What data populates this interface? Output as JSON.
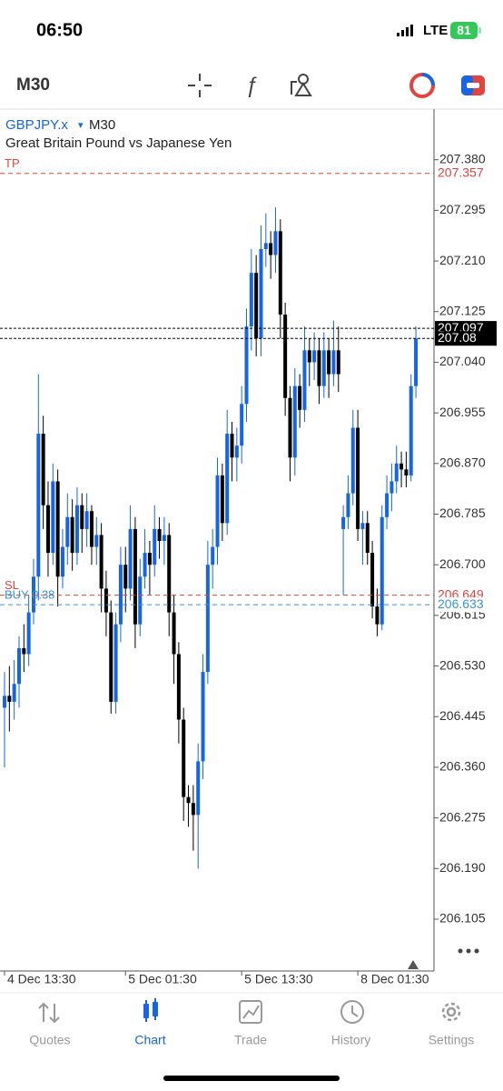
{
  "status_bar": {
    "time": "06:50",
    "network": "LTE",
    "battery": "81"
  },
  "toolbar": {
    "timeframe": "M30"
  },
  "chart_data": {
    "type": "candlestick",
    "symbol": "GBPJPY.x",
    "symbol_arrow": "▾",
    "timeframe": "M30",
    "subtitle": "Great Britain Pound vs Japanese Yen",
    "up_color": "#1565e6",
    "down_color": "#000000",
    "ylim": [
      206.018,
      207.465
    ],
    "yticks": [
      {
        "value": 207.38,
        "label": "207.380"
      },
      207.295,
      {
        "value": 207.21,
        "label": "207.210"
      },
      207.125,
      {
        "value": 207.04,
        "label": "207.040"
      },
      206.955,
      {
        "value": 206.87,
        "label": "206.870"
      },
      206.785,
      {
        "value": 206.7,
        "label": "206.700"
      },
      206.615,
      {
        "value": 206.53,
        "label": "206.530"
      },
      206.445,
      {
        "value": 206.36,
        "label": "206.360"
      },
      206.275,
      {
        "value": 206.19,
        "label": "206.190"
      },
      206.105
    ],
    "levels": [
      {
        "name": "TP",
        "value": 207.357,
        "color": "#e0443e"
      },
      {
        "name": "SL",
        "value": 206.649,
        "color": "#e0443e"
      },
      {
        "name": "BUY 0.38",
        "value": 206.633,
        "color": "#3b8fe0"
      },
      {
        "value": 207.097,
        "color": "#000000",
        "boxed": true
      },
      {
        "value": 207.08,
        "color": "#000000",
        "boxed": true
      }
    ],
    "categories": [
      "4 Dec 13:30",
      null,
      null,
      null,
      null,
      null,
      null,
      null,
      null,
      null,
      null,
      null,
      null,
      null,
      null,
      null,
      null,
      null,
      null,
      null,
      null,
      null,
      null,
      null,
      null,
      "5 Dec 01:30",
      null,
      null,
      null,
      null,
      null,
      null,
      null,
      null,
      null,
      null,
      null,
      null,
      null,
      null,
      null,
      null,
      null,
      null,
      null,
      null,
      null,
      null,
      null,
      "5 Dec 13:30",
      null,
      null,
      null,
      null,
      null,
      null,
      null,
      null,
      null,
      null,
      null,
      null,
      null,
      null,
      null,
      null,
      null,
      null,
      null,
      null,
      null,
      null,
      null,
      "8 Dec 01:30",
      null,
      null,
      null,
      null,
      null,
      null,
      null,
      null,
      null,
      null,
      null,
      null
    ],
    "candles": [
      [
        206.46,
        206.52,
        206.36,
        206.48
      ],
      [
        206.48,
        206.53,
        206.42,
        206.47
      ],
      [
        206.47,
        206.54,
        206.44,
        206.5
      ],
      [
        206.5,
        206.58,
        206.46,
        206.56
      ],
      [
        206.56,
        206.6,
        206.52,
        206.55
      ],
      [
        206.55,
        206.65,
        206.53,
        206.62
      ],
      [
        206.62,
        206.71,
        206.6,
        206.68
      ],
      [
        206.68,
        207.02,
        206.64,
        206.92
      ],
      [
        206.92,
        206.95,
        206.76,
        206.8
      ],
      [
        206.8,
        206.84,
        206.68,
        206.72
      ],
      [
        206.72,
        206.87,
        206.7,
        206.84
      ],
      [
        206.84,
        206.86,
        206.63,
        206.68
      ],
      [
        206.68,
        206.76,
        206.66,
        206.73
      ],
      [
        206.73,
        206.82,
        206.7,
        206.78
      ],
      [
        206.78,
        206.81,
        206.69,
        206.72
      ],
      [
        206.72,
        206.83,
        206.7,
        206.8
      ],
      [
        206.8,
        206.82,
        206.72,
        206.76
      ],
      [
        206.76,
        206.82,
        206.73,
        206.79
      ],
      [
        206.79,
        206.8,
        206.7,
        206.73
      ],
      [
        206.73,
        206.78,
        206.7,
        206.75
      ],
      [
        206.75,
        206.77,
        206.62,
        206.66
      ],
      [
        206.66,
        206.69,
        206.58,
        206.62
      ],
      [
        206.62,
        206.64,
        206.45,
        206.47
      ],
      [
        206.47,
        206.62,
        206.45,
        206.6
      ],
      [
        206.6,
        206.73,
        206.57,
        206.7
      ],
      [
        206.7,
        206.73,
        206.62,
        206.66
      ],
      [
        206.66,
        206.8,
        206.64,
        206.76
      ],
      [
        206.76,
        206.78,
        206.56,
        206.6
      ],
      [
        206.6,
        206.71,
        206.58,
        206.68
      ],
      [
        206.68,
        206.76,
        206.66,
        206.72
      ],
      [
        206.72,
        206.74,
        206.65,
        206.7
      ],
      [
        206.7,
        206.8,
        206.68,
        206.76
      ],
      [
        206.76,
        206.78,
        206.71,
        206.74
      ],
      [
        206.74,
        206.78,
        206.7,
        206.75
      ],
      [
        206.75,
        206.77,
        206.58,
        206.62
      ],
      [
        206.62,
        206.65,
        206.5,
        206.55
      ],
      [
        206.55,
        206.57,
        206.4,
        206.44
      ],
      [
        206.44,
        206.46,
        206.27,
        206.31
      ],
      [
        206.31,
        206.33,
        206.26,
        206.3
      ],
      [
        206.3,
        206.33,
        206.22,
        206.28
      ],
      [
        206.28,
        206.4,
        206.19,
        206.37
      ],
      [
        206.37,
        206.55,
        206.34,
        206.52
      ],
      [
        206.52,
        206.74,
        206.5,
        206.7
      ],
      [
        206.7,
        206.76,
        206.66,
        206.73
      ],
      [
        206.73,
        206.88,
        206.7,
        206.85
      ],
      [
        206.85,
        206.87,
        206.74,
        206.77
      ],
      [
        206.77,
        206.96,
        206.75,
        206.92
      ],
      [
        206.92,
        206.94,
        206.84,
        206.88
      ],
      [
        206.88,
        206.93,
        206.84,
        206.9
      ],
      [
        206.9,
        207.0,
        206.87,
        206.97
      ],
      [
        206.97,
        207.13,
        206.94,
        207.1
      ],
      [
        207.1,
        207.23,
        207.06,
        207.19
      ],
      [
        207.19,
        207.22,
        207.05,
        207.08
      ],
      [
        207.08,
        207.27,
        207.05,
        207.23
      ],
      [
        207.23,
        207.29,
        207.2,
        207.24
      ],
      [
        207.24,
        207.26,
        207.18,
        207.22
      ],
      [
        207.22,
        207.3,
        207.19,
        207.26
      ],
      [
        207.26,
        207.28,
        207.08,
        207.12
      ],
      [
        207.12,
        207.14,
        206.95,
        206.98
      ],
      [
        206.98,
        207.0,
        206.84,
        206.88
      ],
      [
        206.88,
        207.03,
        206.85,
        207.0
      ],
      [
        207.0,
        207.02,
        206.93,
        206.96
      ],
      [
        206.96,
        207.1,
        206.94,
        207.06
      ],
      [
        207.06,
        207.08,
        207.0,
        207.04
      ],
      [
        207.04,
        207.09,
        207.01,
        207.06
      ],
      [
        207.06,
        207.08,
        206.97,
        207.0
      ],
      [
        207.0,
        207.09,
        206.98,
        207.06
      ],
      [
        207.06,
        207.08,
        206.98,
        207.02
      ],
      [
        207.02,
        207.11,
        207.0,
        207.06
      ],
      [
        207.06,
        207.1,
        206.99,
        207.02
      ],
      [
        206.76,
        206.8,
        206.65,
        206.78
      ],
      [
        206.78,
        206.85,
        206.76,
        206.82
      ],
      [
        206.82,
        206.96,
        206.8,
        206.93
      ],
      [
        206.93,
        206.96,
        206.74,
        206.76
      ],
      [
        206.76,
        206.79,
        206.7,
        206.77
      ],
      [
        206.77,
        206.79,
        206.7,
        206.72
      ],
      [
        206.72,
        206.74,
        206.61,
        206.63
      ],
      [
        206.63,
        206.66,
        206.58,
        206.6
      ],
      [
        206.6,
        206.8,
        206.59,
        206.78
      ],
      [
        206.78,
        206.85,
        206.76,
        206.82
      ],
      [
        206.82,
        206.87,
        206.79,
        206.84
      ],
      [
        206.84,
        206.9,
        206.82,
        206.87
      ],
      [
        206.87,
        206.89,
        206.83,
        206.86
      ],
      [
        206.86,
        206.89,
        206.83,
        206.85
      ],
      [
        206.85,
        207.02,
        206.84,
        207.0
      ],
      [
        207.0,
        207.1,
        206.98,
        207.08
      ]
    ]
  },
  "tabs": [
    {
      "label": "Quotes",
      "active": false
    },
    {
      "label": "Chart",
      "active": true
    },
    {
      "label": "Trade",
      "active": false
    },
    {
      "label": "History",
      "active": false
    },
    {
      "label": "Settings",
      "active": false
    }
  ]
}
